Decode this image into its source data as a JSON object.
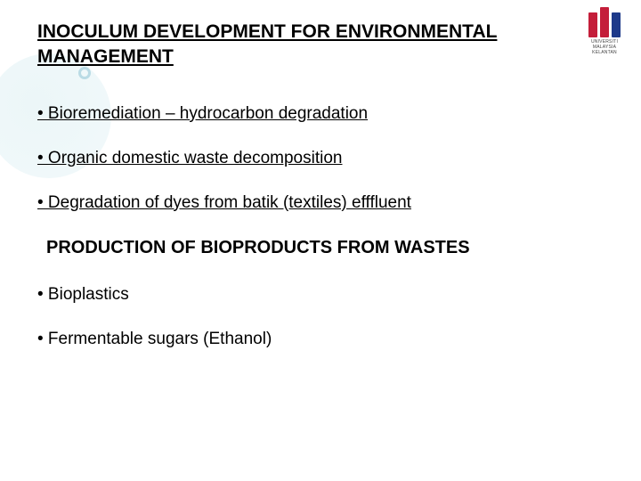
{
  "title": "INOCULUM DEVELOPMENT FOR ENVIRONMENTAL MANAGEMENT",
  "bullets_section1": [
    "• Bioremediation – hydrocarbon degradation",
    "• Organic domestic waste decomposition",
    "• Degradation of dyes from batik (textiles) efffluent"
  ],
  "subtitle": "PRODUCTION OF BIOPRODUCTS FROM WASTES",
  "bullets_section2": [
    "• Bioplastics",
    "• Fermentable sugars (Ethanol)"
  ],
  "logo": {
    "line1": "UNIVERSITI",
    "line2": "MALAYSIA",
    "line3": "KELANTAN",
    "bar_colors": [
      "#c41e3a",
      "#c41e3a",
      "#1e3a8a"
    ]
  },
  "styling": {
    "background_color": "#ffffff",
    "title_fontsize": 21,
    "title_weight": "bold",
    "title_underline": true,
    "bullet_fontsize": 19,
    "bullet_underline_section1": true,
    "bullet_underline_section2": false,
    "subtitle_fontsize": 20,
    "subtitle_weight": "bold",
    "text_color": "#000000",
    "decorative_circle_color": "rgba(180,220,230,0.25)"
  }
}
